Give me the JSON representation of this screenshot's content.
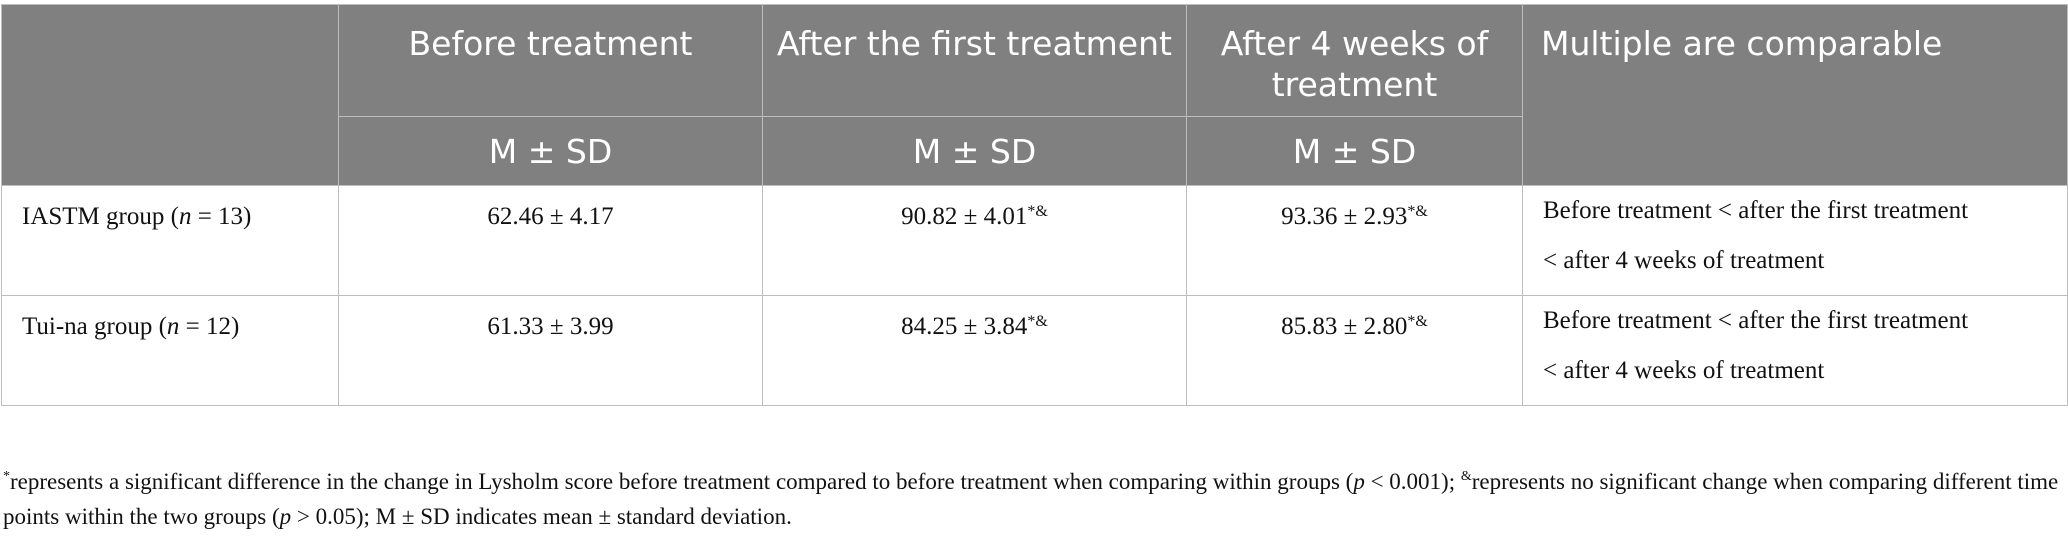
{
  "table": {
    "headers": {
      "label": "",
      "before": "Before treatment",
      "after_first": "After the first treatment",
      "after_4w": "After 4 weeks of treatment",
      "multiple": "Multiple are comparable",
      "subheader": "M ± SD"
    },
    "rows": [
      {
        "group": "IASTM group (",
        "n_symbol": "n",
        "n_value": " = 13)",
        "before": "62.46 ± 4.17",
        "after_first": "90.82 ± 4.01",
        "after_first_mark": "*&",
        "after_4w": "93.36 ± 2.93",
        "after_4w_mark": "*&",
        "comparison_line1": "Before treatment < after the first treatment",
        "comparison_line2": "< after 4 weeks of treatment"
      },
      {
        "group": "Tui-na group (",
        "n_symbol": "n",
        "n_value": " = 12)",
        "before": "61.33 ± 3.99",
        "after_first": "84.25 ± 3.84",
        "after_first_mark": "*&",
        "after_4w": "85.83 ± 2.80",
        "after_4w_mark": "*&",
        "comparison_line1": "Before treatment < after the first treatment",
        "comparison_line2": "< after 4 weeks of treatment"
      }
    ]
  },
  "footnote": {
    "star": "*",
    "part1": "represents a significant difference in the change in Lysholm score before treatment compared to before treatment when comparing within groups (",
    "p1_symbol": "p",
    "p1_value": " < 0.001); ",
    "amp": "&",
    "part2": "represents no significant change when comparing different time points within the two groups (",
    "p2_symbol": "p",
    "p2_value": " > 0.05); M ± SD indicates mean ± standard deviation."
  }
}
